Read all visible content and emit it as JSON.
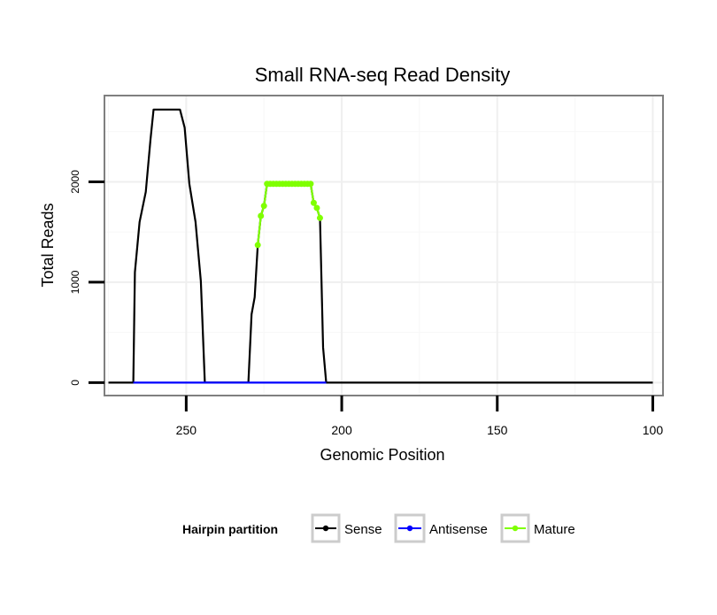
{
  "chart_data": {
    "type": "line",
    "title": "Small RNA-seq Read Density",
    "xlabel": "Genomic Position",
    "ylabel": "Total Reads",
    "xlim": [
      276,
      97
    ],
    "ylim": [
      -120,
      2850
    ],
    "x_reversed": true,
    "grid": true,
    "x_ticks": [
      250,
      200,
      150,
      100
    ],
    "y_ticks": [
      0,
      1000,
      2000
    ],
    "legend": {
      "title": "Hairpin partition",
      "placement": "bottom",
      "entries": [
        "Sense",
        "Antisense",
        "Mature"
      ]
    },
    "series": [
      {
        "name": "Sense",
        "color": "#000000",
        "points": [
          [
            275,
            0
          ],
          [
            267,
            0
          ],
          [
            266.5,
            1100
          ],
          [
            265,
            1600
          ],
          [
            263,
            1900
          ],
          [
            261.5,
            2420
          ],
          [
            260.5,
            2720
          ],
          [
            252,
            2720
          ],
          [
            250.5,
            2540
          ],
          [
            249,
            1980
          ],
          [
            247,
            1600
          ],
          [
            245.3,
            1010
          ],
          [
            244,
            0
          ],
          [
            230,
            0
          ],
          [
            229,
            680
          ],
          [
            228,
            850
          ],
          [
            227,
            1370
          ],
          [
            226,
            1660
          ],
          [
            225,
            1760
          ],
          [
            224,
            1980
          ],
          [
            210,
            1980
          ],
          [
            209,
            1790
          ],
          [
            208,
            1740
          ],
          [
            207,
            1640
          ],
          [
            206,
            350
          ],
          [
            205,
            0
          ],
          [
            100,
            0
          ]
        ]
      },
      {
        "name": "Antisense",
        "color": "#0000ff",
        "points": [
          [
            267,
            0
          ],
          [
            205,
            0
          ]
        ]
      },
      {
        "name": "Mature",
        "color": "#7fff00",
        "points": [
          [
            227,
            1370
          ],
          [
            226,
            1660
          ],
          [
            225,
            1760
          ],
          [
            224,
            1980
          ],
          [
            223,
            1980
          ],
          [
            222,
            1980
          ],
          [
            221,
            1980
          ],
          [
            220,
            1980
          ],
          [
            219,
            1980
          ],
          [
            218,
            1980
          ],
          [
            217,
            1980
          ],
          [
            216,
            1980
          ],
          [
            215,
            1980
          ],
          [
            214,
            1980
          ],
          [
            213,
            1980
          ],
          [
            212,
            1980
          ],
          [
            211,
            1980
          ],
          [
            210,
            1980
          ],
          [
            209,
            1790
          ],
          [
            208,
            1740
          ],
          [
            207,
            1640
          ]
        ]
      }
    ]
  }
}
